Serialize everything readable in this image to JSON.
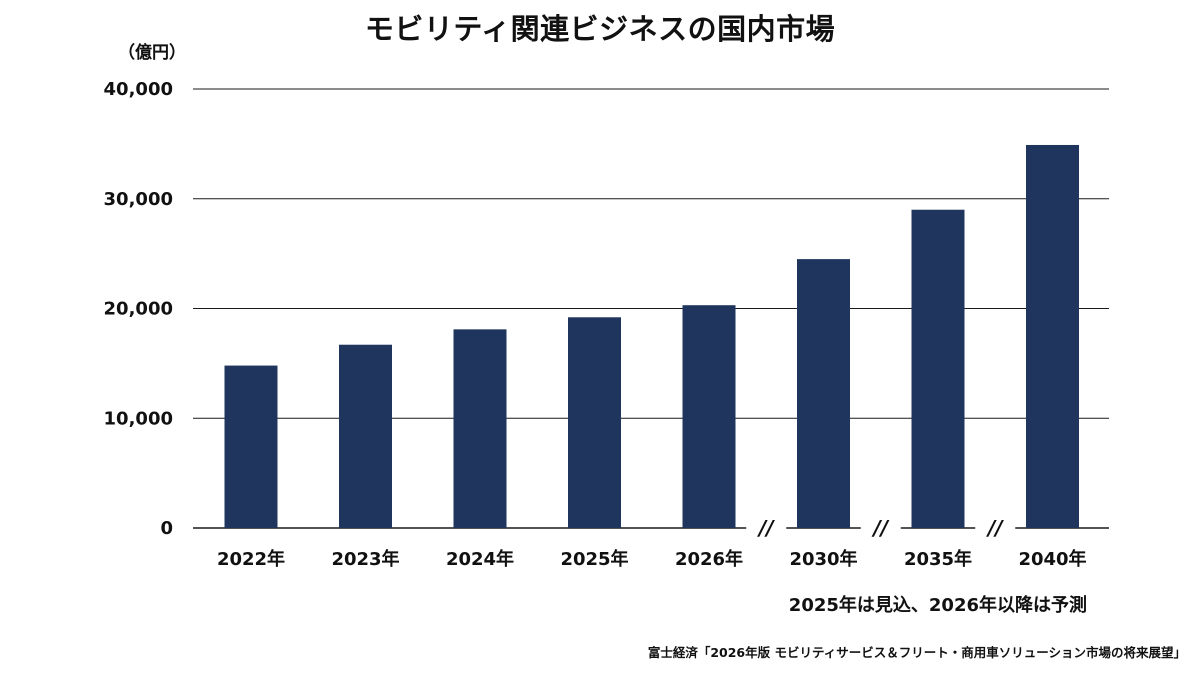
{
  "chart_data": {
    "type": "bar",
    "title": "モビリティ関連ビジネスの国内市場",
    "unit_label": "（億円）",
    "categories": [
      "2022年",
      "2023年",
      "2024年",
      "2025年",
      "2026年",
      "2030年",
      "2035年",
      "2040年"
    ],
    "values": [
      14800,
      16700,
      18100,
      19200,
      20300,
      24500,
      29000,
      34900
    ],
    "ylim": [
      0,
      40000
    ],
    "yticks": [
      0,
      10000,
      20000,
      30000,
      40000
    ],
    "ytick_labels": [
      "0",
      "10,000",
      "20,000",
      "30,000",
      "40,000"
    ],
    "grid": true,
    "bar_color": "#1f355e",
    "axis_breaks_before": [
      "2030年",
      "2035年",
      "2040年"
    ],
    "break_mark": "//",
    "note": "2025年は見込、2026年以降は予測",
    "source": "富士経済「2026年版 モビリティサービス＆フリート・商用車ソリューション市場の将来展望」"
  }
}
